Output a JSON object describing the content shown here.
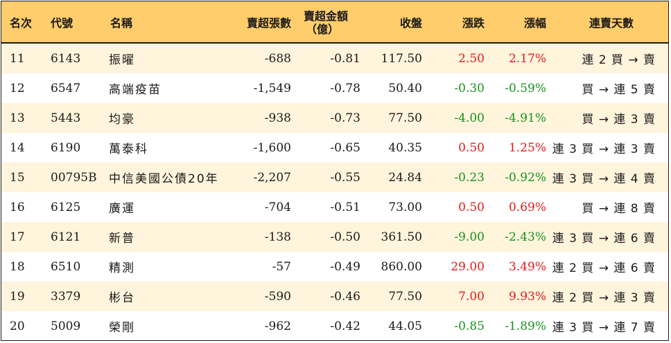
{
  "header": {
    "rank": "名次",
    "code": "代號",
    "name": "名稱",
    "sell_volume": "賣超張數",
    "sell_amount_line1": "賣超金額",
    "sell_amount_line2": "（億）",
    "close": "收盤",
    "change": "漲跌",
    "change_pct": "漲幅",
    "streak": "連賣天數"
  },
  "colors": {
    "header_bg": "#FFCD6B",
    "stripe_bg": "#FFF4DC",
    "up": "#E31A1A",
    "down": "#18921E"
  },
  "rows": [
    {
      "rank": "11",
      "code": "6143",
      "name": "振曜",
      "volume": "-688",
      "amount": "-0.81",
      "close": "117.50",
      "change": "2.50",
      "pct": "2.17%",
      "dir": "up",
      "streak": "連 2 買 → 賣"
    },
    {
      "rank": "12",
      "code": "6547",
      "name": "高端疫苗",
      "volume": "-1,549",
      "amount": "-0.78",
      "close": "50.40",
      "change": "-0.30",
      "pct": "-0.59%",
      "dir": "down",
      "streak": "買 → 連 5 賣"
    },
    {
      "rank": "13",
      "code": "5443",
      "name": "均豪",
      "volume": "-938",
      "amount": "-0.73",
      "close": "77.50",
      "change": "-4.00",
      "pct": "-4.91%",
      "dir": "down",
      "streak": "買 → 連 3 賣"
    },
    {
      "rank": "14",
      "code": "6190",
      "name": "萬泰科",
      "volume": "-1,600",
      "amount": "-0.65",
      "close": "40.35",
      "change": "0.50",
      "pct": "1.25%",
      "dir": "up",
      "streak": "連 3 買 → 連 3 賣"
    },
    {
      "rank": "15",
      "code": "00795B",
      "name": "中信美國公債20年",
      "volume": "-2,207",
      "amount": "-0.55",
      "close": "24.84",
      "change": "-0.23",
      "pct": "-0.92%",
      "dir": "down",
      "streak": "連 3 買 → 連 4 賣"
    },
    {
      "rank": "16",
      "code": "6125",
      "name": "廣運",
      "volume": "-704",
      "amount": "-0.51",
      "close": "73.00",
      "change": "0.50",
      "pct": "0.69%",
      "dir": "up",
      "streak": "買 → 連 8 賣"
    },
    {
      "rank": "17",
      "code": "6121",
      "name": "新普",
      "volume": "-138",
      "amount": "-0.50",
      "close": "361.50",
      "change": "-9.00",
      "pct": "-2.43%",
      "dir": "down",
      "streak": "連 3 買 → 連 6 賣"
    },
    {
      "rank": "18",
      "code": "6510",
      "name": "精測",
      "volume": "-57",
      "amount": "-0.49",
      "close": "860.00",
      "change": "29.00",
      "pct": "3.49%",
      "dir": "up",
      "streak": "連 2 買 → 連 6 賣"
    },
    {
      "rank": "19",
      "code": "3379",
      "name": "彬台",
      "volume": "-590",
      "amount": "-0.46",
      "close": "77.50",
      "change": "7.00",
      "pct": "9.93%",
      "dir": "up",
      "streak": "連 2 買 → 連 3 賣"
    },
    {
      "rank": "20",
      "code": "5009",
      "name": "榮剛",
      "volume": "-962",
      "amount": "-0.42",
      "close": "44.05",
      "change": "-0.85",
      "pct": "-1.89%",
      "dir": "down",
      "streak": "連 3 買 → 連 7 賣"
    }
  ]
}
